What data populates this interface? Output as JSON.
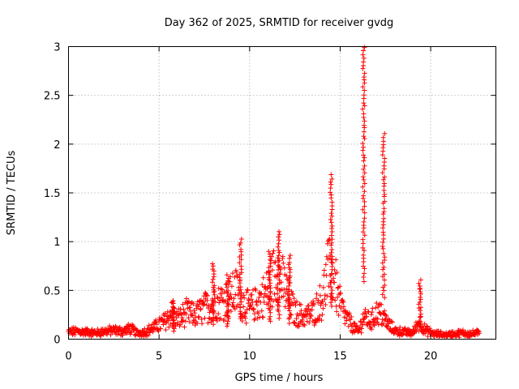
{
  "chart_data": {
    "type": "scatter",
    "title": "Day 362 of 2025, SRMTID for receiver gvdg",
    "xlabel": "GPS time / hours",
    "ylabel": "SRMTID / TECUs",
    "xlim": [
      0,
      23.6
    ],
    "ylim": [
      0,
      3
    ],
    "x_ticks": [
      0,
      5,
      10,
      15,
      20
    ],
    "y_ticks": [
      0,
      0.5,
      1,
      1.5,
      2,
      2.5,
      3
    ],
    "x_tick_labels": [
      "0",
      "5",
      "10",
      "15",
      "20"
    ],
    "y_tick_labels": [
      "0",
      "0.5",
      "1",
      "1.5",
      "2",
      "2.5",
      "3"
    ],
    "grid": true,
    "marker": "+",
    "color": "#ff0000",
    "envelope": [
      [
        0.0,
        0.08
      ],
      [
        0.5,
        0.09
      ],
      [
        1.0,
        0.08
      ],
      [
        1.5,
        0.07
      ],
      [
        2.0,
        0.09
      ],
      [
        2.5,
        0.1
      ],
      [
        3.0,
        0.09
      ],
      [
        3.4,
        0.12
      ],
      [
        3.8,
        0.07
      ],
      [
        4.3,
        0.09
      ],
      [
        4.8,
        0.14
      ],
      [
        5.3,
        0.2
      ],
      [
        5.7,
        0.3
      ],
      [
        6.0,
        0.22
      ],
      [
        6.5,
        0.3
      ],
      [
        7.0,
        0.27
      ],
      [
        7.5,
        0.35
      ],
      [
        8.0,
        0.4
      ],
      [
        8.6,
        0.45
      ],
      [
        9.0,
        0.5
      ],
      [
        9.3,
        0.55
      ],
      [
        9.6,
        0.42
      ],
      [
        10.0,
        0.35
      ],
      [
        10.5,
        0.42
      ],
      [
        11.0,
        0.55
      ],
      [
        11.5,
        0.8
      ],
      [
        11.8,
        0.65
      ],
      [
        12.1,
        0.5
      ],
      [
        12.5,
        0.3
      ],
      [
        13.0,
        0.25
      ],
      [
        13.5,
        0.3
      ],
      [
        14.0,
        0.45
      ],
      [
        14.3,
        0.75
      ],
      [
        14.6,
        0.8
      ],
      [
        14.9,
        0.45
      ],
      [
        15.3,
        0.25
      ],
      [
        15.7,
        0.15
      ],
      [
        16.0,
        0.08
      ],
      [
        16.3,
        0.25
      ],
      [
        16.7,
        0.2
      ],
      [
        17.0,
        0.3
      ],
      [
        17.3,
        0.28
      ],
      [
        17.6,
        0.18
      ],
      [
        18.0,
        0.1
      ],
      [
        18.5,
        0.08
      ],
      [
        19.0,
        0.07
      ],
      [
        19.4,
        0.2
      ],
      [
        19.7,
        0.1
      ],
      [
        20.2,
        0.06
      ],
      [
        20.8,
        0.05
      ],
      [
        21.3,
        0.06
      ],
      [
        21.8,
        0.07
      ],
      [
        22.3,
        0.06
      ],
      [
        22.7,
        0.07
      ]
    ],
    "peaks": [
      {
        "x": 5.8,
        "y": 0.4
      },
      {
        "x": 8.0,
        "y": 0.77
      },
      {
        "x": 8.8,
        "y": 0.65
      },
      {
        "x": 9.5,
        "y": 1.02
      },
      {
        "x": 11.1,
        "y": 0.9
      },
      {
        "x": 11.6,
        "y": 1.1
      },
      {
        "x": 12.2,
        "y": 0.85
      },
      {
        "x": 14.5,
        "y": 1.68
      },
      {
        "x": 16.3,
        "y": 3.0
      },
      {
        "x": 17.4,
        "y": 2.1
      },
      {
        "x": 19.4,
        "y": 0.6
      }
    ]
  }
}
